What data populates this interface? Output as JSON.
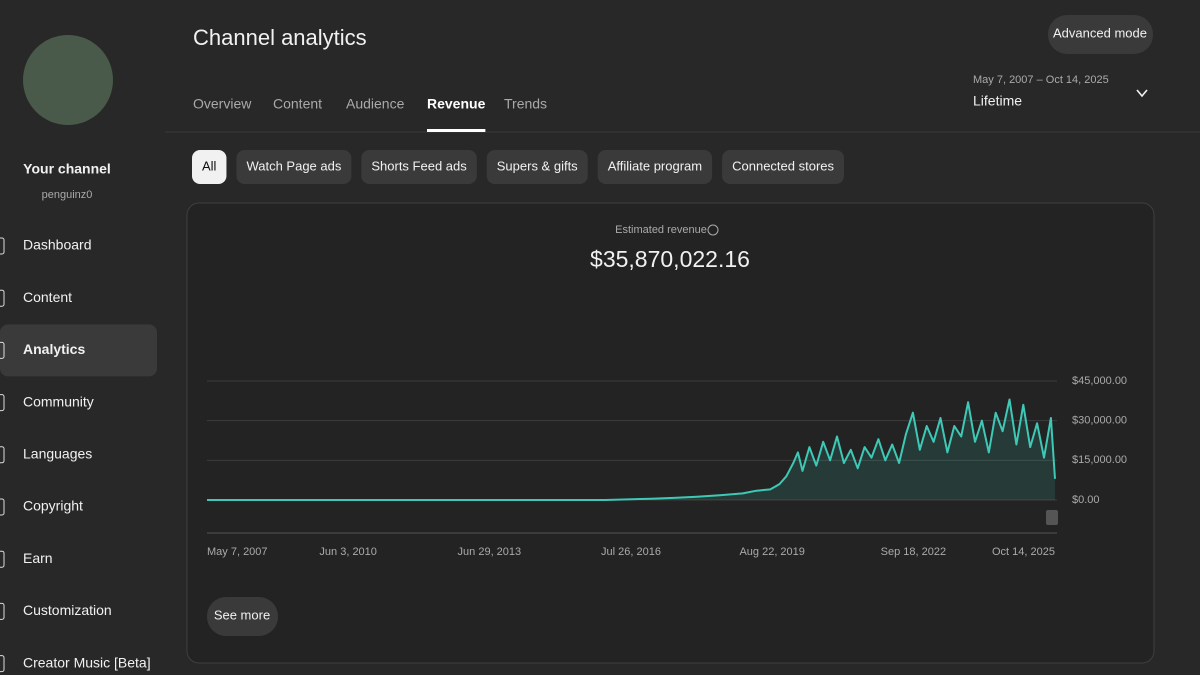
{
  "sidebar": {
    "channel_label": "Your channel",
    "handle": "penguinz0",
    "nav": [
      "Dashboard",
      "Content",
      "Analytics",
      "Community",
      "Languages",
      "Copyright",
      "Earn",
      "Customization",
      "Creator Music [Beta]"
    ]
  },
  "header": {
    "title": "Channel analytics",
    "advanced_mode": "Advanced mode",
    "date_range": "May 7, 2007 – Oct 14, 2025",
    "period": "Lifetime"
  },
  "tabs": [
    "Overview",
    "Content",
    "Audience",
    "Revenue",
    "Trends"
  ],
  "filters": [
    "All",
    "Watch Page ads",
    "Shorts Feed ads",
    "Supers & gifts",
    "Affiliate program",
    "Connected stores"
  ],
  "chart_data": {
    "type": "line",
    "title": "Estimated revenue",
    "total": "$35,870,022.16",
    "x": [
      2007.35,
      2010,
      2013,
      2016,
      2016.6,
      2017,
      2017.5,
      2018,
      2018.5,
      2019,
      2019.3,
      2019.6,
      2019.8,
      2019.95,
      2020.1,
      2020.2,
      2020.3,
      2020.45,
      2020.6,
      2020.75,
      2020.9,
      2021.05,
      2021.2,
      2021.35,
      2021.5,
      2021.65,
      2021.8,
      2021.95,
      2022.1,
      2022.25,
      2022.4,
      2022.55,
      2022.7,
      2022.85,
      2023.0,
      2023.15,
      2023.3,
      2023.45,
      2023.6,
      2023.75,
      2023.9,
      2024.05,
      2024.2,
      2024.35,
      2024.5,
      2024.65,
      2024.8,
      2024.95,
      2025.1,
      2025.25,
      2025.4,
      2025.55,
      2025.7,
      2025.79
    ],
    "series": [
      {
        "color": "#3ec9b6",
        "values": [
          0,
          0,
          0,
          0,
          300,
          500,
          800,
          1200,
          1800,
          2500,
          3500,
          4000,
          6000,
          9000,
          14000,
          18000,
          11000,
          20000,
          13000,
          22000,
          15000,
          24000,
          14000,
          19000,
          12000,
          20000,
          16000,
          23000,
          15000,
          21000,
          14000,
          25000,
          33000,
          19000,
          28000,
          22000,
          31000,
          18000,
          28000,
          24000,
          37000,
          22000,
          30000,
          18000,
          33000,
          26000,
          38000,
          21000,
          36000,
          20000,
          29000,
          16000,
          31000,
          8000
        ]
      }
    ],
    "xlim": [
      2007.35,
      2025.79
    ],
    "xticks": [
      {
        "value": 2007.35,
        "label": "May 7, 2007"
      },
      {
        "value": 2010.42,
        "label": "Jun 3, 2010"
      },
      {
        "value": 2013.49,
        "label": "Jun 29, 2013"
      },
      {
        "value": 2016.57,
        "label": "Jul 26, 2016"
      },
      {
        "value": 2019.64,
        "label": "Aug 22, 2019"
      },
      {
        "value": 2022.71,
        "label": "Sep 18, 2022"
      },
      {
        "value": 2025.79,
        "label": "Oct 14, 2025"
      }
    ],
    "ylim": [
      0,
      45000
    ],
    "yticks": [
      {
        "value": 0,
        "label": "$0.00"
      },
      {
        "value": 15000,
        "label": "$15,000.00"
      },
      {
        "value": 30000,
        "label": "$30,000.00"
      },
      {
        "value": 45000,
        "label": "$45,000.00"
      }
    ],
    "grid": true
  },
  "see_more": "See more"
}
